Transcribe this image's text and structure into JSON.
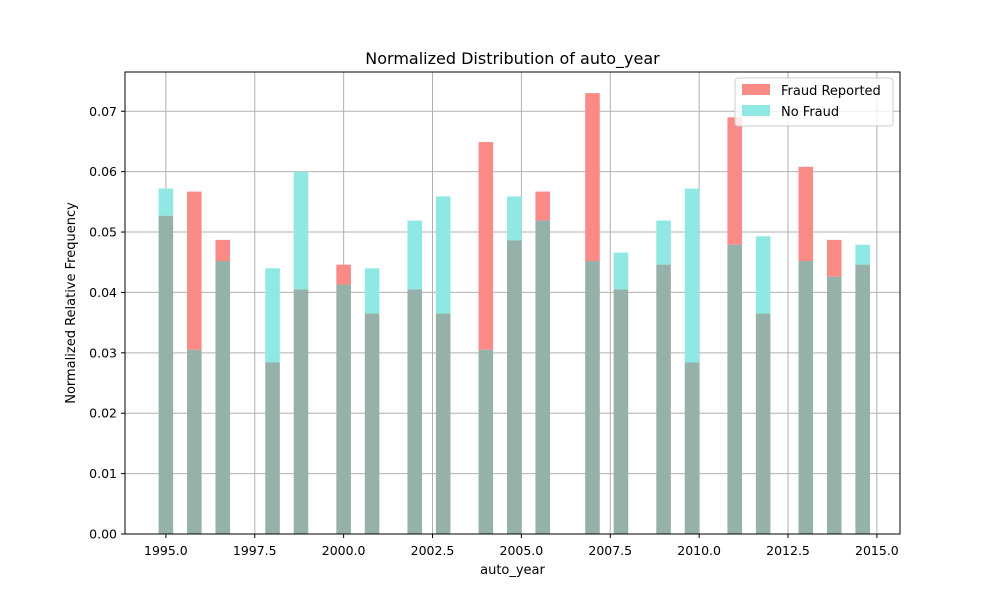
{
  "chart_data": {
    "type": "bar",
    "title": "Normalized Distribution of auto_year",
    "xlabel": "auto_year",
    "ylabel": "Normalized Relative Frequency",
    "xlim": [
      1993.85,
      2015.65
    ],
    "ylim": [
      0,
      0.0765
    ],
    "xticks": [
      1995.0,
      1997.5,
      2000.0,
      2002.5,
      2005.0,
      2007.5,
      2010.0,
      2012.5,
      2015.0
    ],
    "xtick_labels": [
      "1995.0",
      "1997.5",
      "2000.0",
      "2002.5",
      "2005.0",
      "2007.5",
      "2010.0",
      "2012.5",
      "2015.0"
    ],
    "yticks": [
      0.0,
      0.01,
      0.02,
      0.03,
      0.04,
      0.05,
      0.06,
      0.07
    ],
    "ytick_labels": [
      "0.00",
      "0.01",
      "0.02",
      "0.03",
      "0.04",
      "0.05",
      "0.06",
      "0.07"
    ],
    "grid": true,
    "legend_position": "top-right",
    "overlap_color": "#95b1a9",
    "series": [
      {
        "name": "Fraud Reported",
        "color": "#fa8a86",
        "x": [
          1995.0,
          1995.8,
          1996.6,
          1998.0,
          1998.8,
          2000.0,
          2000.8,
          2002.0,
          2002.8,
          2004.0,
          2004.8,
          2005.6,
          2007.0,
          2007.8,
          2009.0,
          2009.8,
          2011.0,
          2011.8,
          2013.0,
          2013.8,
          2014.6
        ],
        "values": [
          0.0527,
          0.0567,
          0.0487,
          0.0284,
          0.0405,
          0.0446,
          0.0365,
          0.0405,
          0.0365,
          0.0649,
          0.0486,
          0.0567,
          0.073,
          0.0405,
          0.0446,
          0.0284,
          0.069,
          0.0365,
          0.0608,
          0.0487,
          0.0446
        ]
      },
      {
        "name": "No Fraud",
        "color": "#8fe8e4",
        "x": [
          1995.0,
          1995.8,
          1996.6,
          1998.0,
          1998.8,
          2000.0,
          2000.8,
          2002.0,
          2002.8,
          2004.0,
          2004.8,
          2005.6,
          2007.0,
          2007.8,
          2009.0,
          2009.8,
          2011.0,
          2011.8,
          2013.0,
          2013.8,
          2014.6
        ],
        "values": [
          0.0572,
          0.0305,
          0.0452,
          0.044,
          0.06,
          0.0413,
          0.044,
          0.0519,
          0.0559,
          0.0305,
          0.0559,
          0.0519,
          0.0452,
          0.0466,
          0.0519,
          0.0572,
          0.0479,
          0.0493,
          0.0452,
          0.0426,
          0.0479
        ]
      }
    ]
  }
}
